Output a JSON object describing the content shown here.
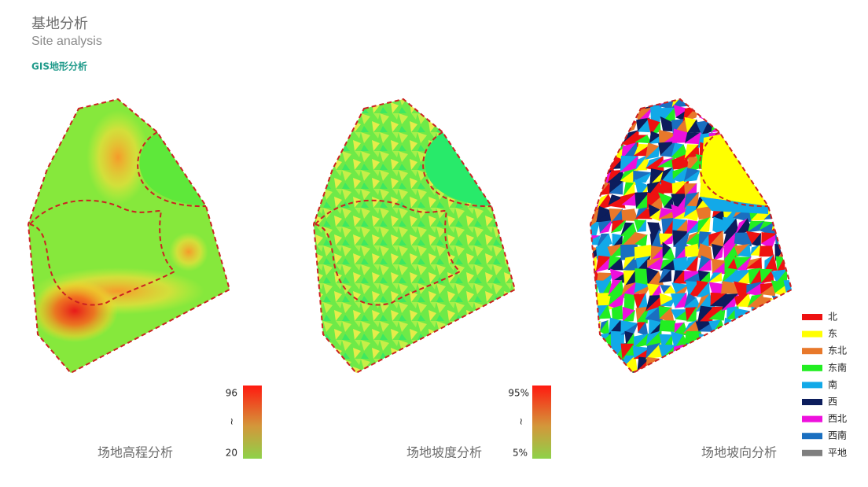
{
  "header": {
    "title": "基地分析",
    "subtitle": "Site analysis",
    "section": "GIS地形分析"
  },
  "panels": [
    {
      "caption": "场地高程分析",
      "legend": {
        "max": "96",
        "separator": "≀",
        "min": "20"
      }
    },
    {
      "caption": "场地坡度分析",
      "legend": {
        "max": "95%",
        "separator": "≀",
        "min": "5%"
      }
    },
    {
      "caption": "场地坡向分析",
      "legend": {
        "items": [
          {
            "label": "北",
            "color": "#ee1111"
          },
          {
            "label": "东",
            "color": "#ffff00"
          },
          {
            "label": "东北",
            "color": "#e8782a"
          },
          {
            "label": "东南",
            "color": "#22ee22"
          },
          {
            "label": "南",
            "color": "#12a9e8"
          },
          {
            "label": "西",
            "color": "#0c1d5c"
          },
          {
            "label": "西北",
            "color": "#ee10dd"
          },
          {
            "label": "西南",
            "color": "#1a6fc0"
          },
          {
            "label": "平地",
            "color": "#7f7f7f"
          }
        ]
      }
    }
  ]
}
